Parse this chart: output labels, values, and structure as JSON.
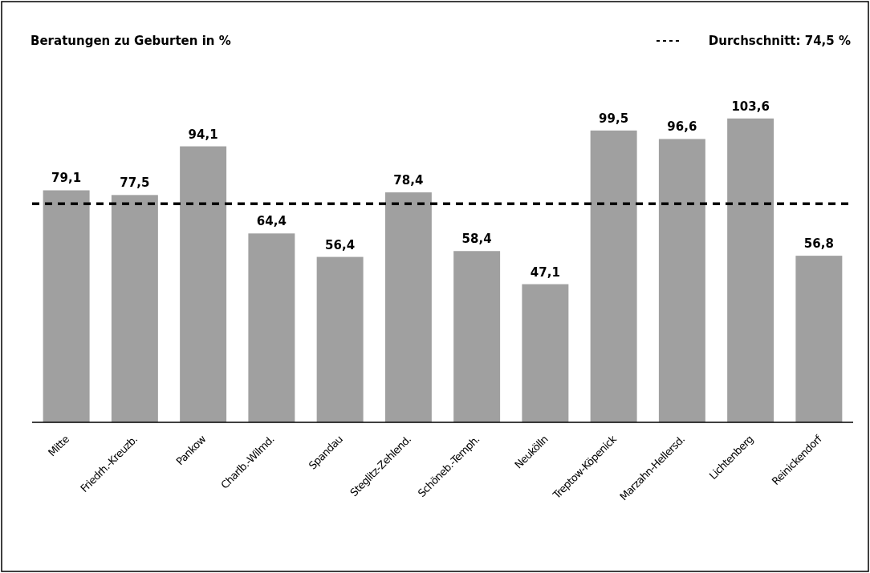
{
  "chart_data": {
    "type": "bar",
    "title": "Beratungen zu Geburten in %",
    "categories": [
      "Mitte",
      "Friedrh.-Kreuzb.",
      "Pankow",
      "Charlb.-Wilmd.",
      "Spandau",
      "Steglitz-Zehlend.",
      "Schöneb.-Temph.",
      "Neukölln",
      "Treptow-Köpenick",
      "Marzahn-Hellersd.",
      "Lichtenberg",
      "Reinickendorf"
    ],
    "values": [
      79.1,
      77.5,
      94.1,
      64.4,
      56.4,
      78.4,
      58.4,
      47.1,
      99.5,
      96.6,
      103.6,
      56.8
    ],
    "value_labels": [
      "79,1",
      "77,5",
      "94,1",
      "64,4",
      "56,4",
      "78,4",
      "58,4",
      "47,1",
      "99,5",
      "96,6",
      "103,6",
      "56,8"
    ],
    "color": "#a0a0a0",
    "ref_lines": [
      {
        "axis": "y",
        "value": 74.5,
        "label": "Durchschnitt: 74,5 %",
        "color": "#000000",
        "line_style": "dashed"
      }
    ],
    "legend": "top right"
  }
}
